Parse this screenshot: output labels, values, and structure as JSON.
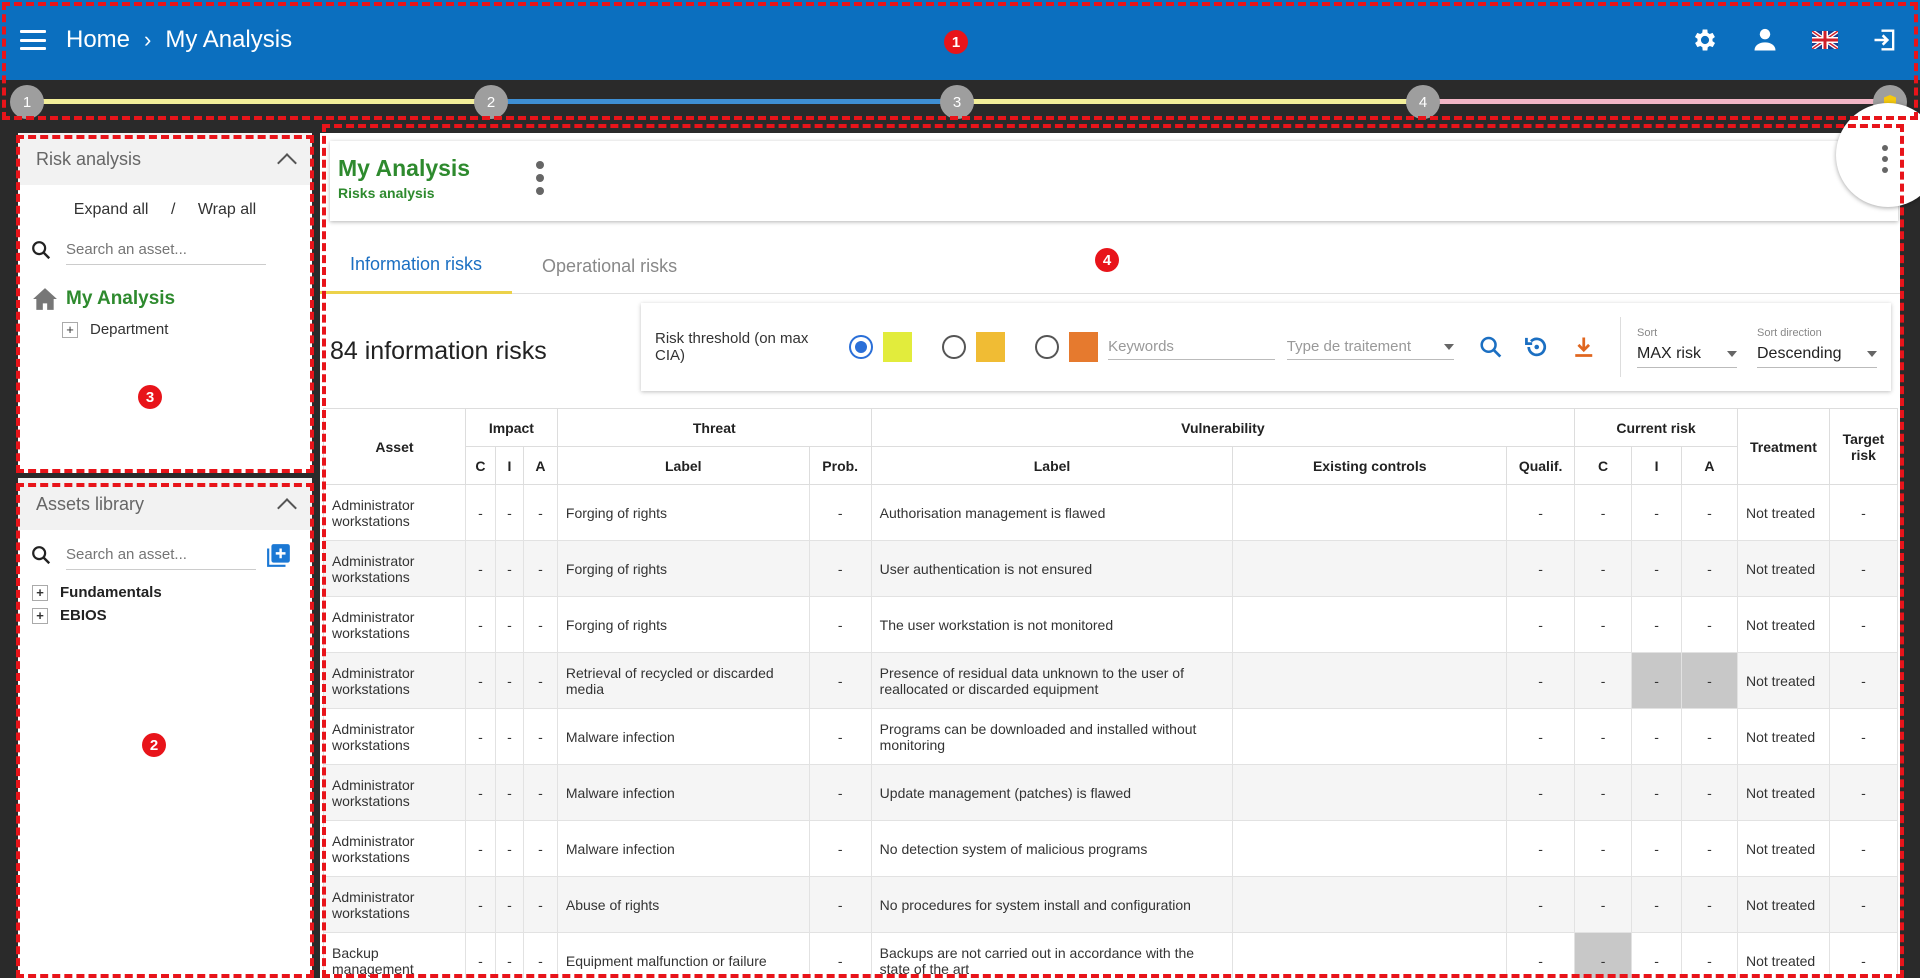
{
  "header": {
    "breadcrumb_home": "Home",
    "breadcrumb_current": "My Analysis"
  },
  "stepper": {
    "steps": [
      "1",
      "2",
      "3",
      "4"
    ],
    "colors": [
      "#f3ef9a",
      "#3e8fd4",
      "#f3ef9a",
      "#f2b6c6"
    ]
  },
  "risk_panel": {
    "title": "Risk analysis",
    "expand_all": "Expand all",
    "sep": "/",
    "wrap_all": "Wrap all",
    "search_placeholder": "Search an asset...",
    "root": "My Analysis",
    "child": "Department"
  },
  "assets_panel": {
    "title": "Assets library",
    "search_placeholder": "Search an asset...",
    "items": [
      "Fundamentals",
      "EBIOS"
    ]
  },
  "main": {
    "title": "My Analysis",
    "subtitle": "Risks analysis",
    "tabs": [
      "Information risks",
      "Operational risks"
    ],
    "count": "84 information risks"
  },
  "filters": {
    "threshold_label": "Risk threshold (on max CIA)",
    "swatch_colors": [
      "#e2ec3c",
      "#f0bc34",
      "#e67a2e"
    ],
    "keywords_placeholder": "Keywords",
    "treatment_type": "Type de traitement",
    "sort_label": "Sort",
    "sort_value": "MAX risk",
    "sort_dir_label": "Sort direction",
    "sort_dir_value": "Descending"
  },
  "table": {
    "h_asset": "Asset",
    "h_impact": "Impact",
    "h_threat": "Threat",
    "h_vuln": "Vulnerability",
    "h_current": "Current risk",
    "h_treatment": "Treatment",
    "h_target": "Target risk",
    "h_c": "C",
    "h_i": "I",
    "h_a": "A",
    "h_label": "Label",
    "h_prob": "Prob.",
    "h_vlabel": "Label",
    "h_controls": "Existing controls",
    "h_qualif": "Qualif.",
    "h_c2": "C",
    "h_i2": "I",
    "h_a2": "A",
    "dash": "-",
    "rows": [
      {
        "asset": "Administrator workstations",
        "threat": "Forging of rights",
        "vuln": "Authorisation management is flawed",
        "treatment": "Not treated"
      },
      {
        "asset": "Administrator workstations",
        "threat": "Forging of rights",
        "vuln": "User authentication is not ensured",
        "treatment": "Not treated"
      },
      {
        "asset": "Administrator workstations",
        "threat": "Forging of rights",
        "vuln": "The user workstation is not monitored",
        "treatment": "Not treated"
      },
      {
        "asset": "Administrator workstations",
        "threat": "Retrieval of recycled or discarded media",
        "vuln": "Presence of residual data unknown to the user of reallocated or discarded equipment",
        "treatment": "Not treated"
      },
      {
        "asset": "Administrator workstations",
        "threat": "Malware infection",
        "vuln": "Programs can be downloaded and installed without monitoring",
        "treatment": "Not treated"
      },
      {
        "asset": "Administrator workstations",
        "threat": "Malware infection",
        "vuln": "Update management (patches) is flawed",
        "treatment": "Not treated"
      },
      {
        "asset": "Administrator workstations",
        "threat": "Malware infection",
        "vuln": "No detection system of malicious programs",
        "treatment": "Not treated"
      },
      {
        "asset": "Administrator workstations",
        "threat": "Abuse of rights",
        "vuln": "No procedures for system install and configuration",
        "treatment": "Not treated"
      },
      {
        "asset": "Backup management",
        "threat": "Equipment malfunction or failure",
        "vuln": "Backups are not carried out in accordance with the state of the art",
        "treatment": "Not treated"
      }
    ]
  },
  "annotations": [
    "1",
    "2",
    "3",
    "4"
  ]
}
